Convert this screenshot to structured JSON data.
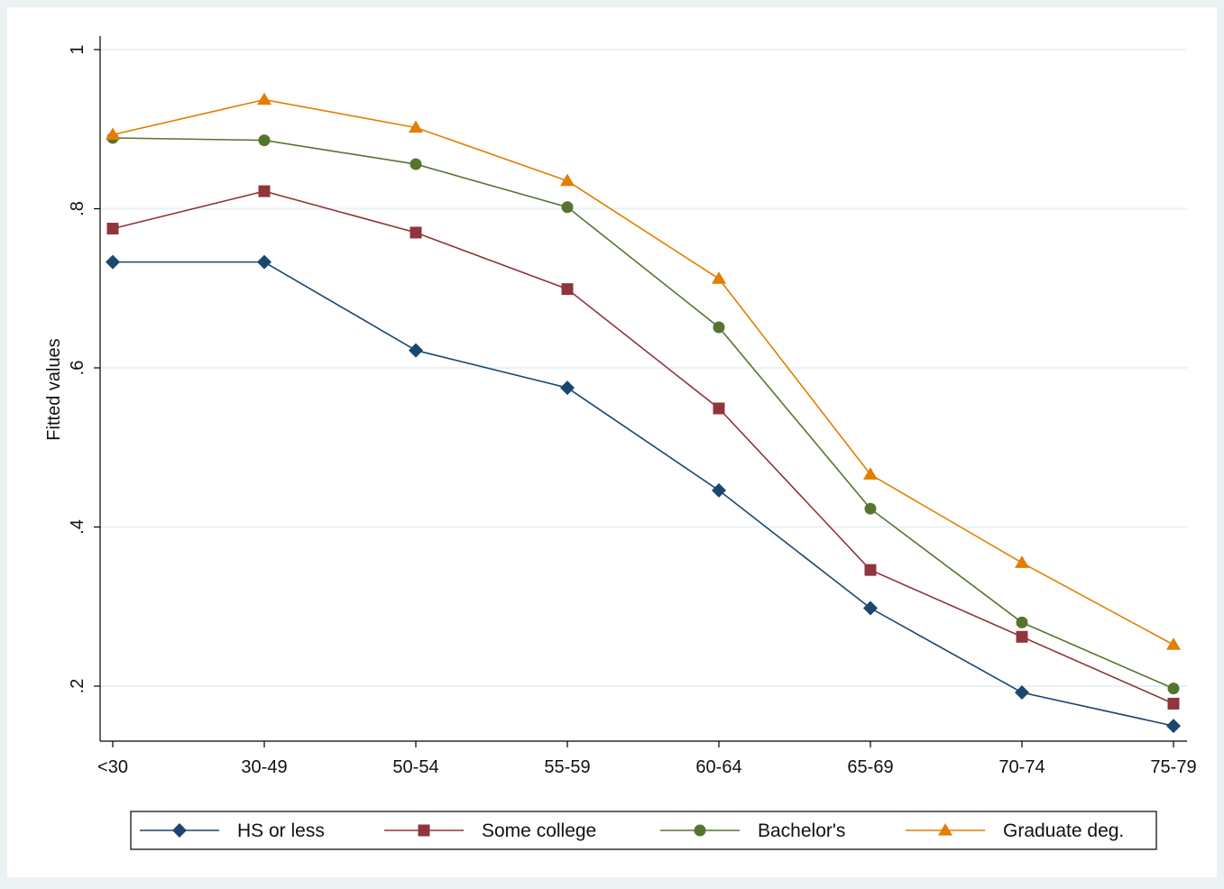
{
  "chart_data": {
    "type": "line",
    "categories": [
      "<30",
      "30-49",
      "50-54",
      "55-59",
      "60-64",
      "65-69",
      "70-74",
      "75-79"
    ],
    "ylabel": "Fitted values",
    "xlabel": "",
    "title": "",
    "ylim": [
      0.14,
      1.02
    ],
    "yticks": [
      0.2,
      0.4,
      0.6,
      0.8,
      1
    ],
    "ytick_labels": [
      ".2",
      ".4",
      ".6",
      ".8",
      "1"
    ],
    "grid": true,
    "legend_position": "bottom",
    "series": [
      {
        "name": "HS or less",
        "color": "#1a476f",
        "marker": "diamond",
        "values": [
          0.733,
          0.733,
          0.622,
          0.575,
          0.446,
          0.298,
          0.192,
          0.15
        ]
      },
      {
        "name": "Some college",
        "color": "#90353b",
        "marker": "square",
        "values": [
          0.775,
          0.822,
          0.77,
          0.699,
          0.549,
          0.346,
          0.262,
          0.178
        ]
      },
      {
        "name": "Bachelor's",
        "color": "#55752f",
        "marker": "circle",
        "values": [
          0.889,
          0.886,
          0.856,
          0.802,
          0.651,
          0.423,
          0.28,
          0.197
        ]
      },
      {
        "name": "Graduate deg.",
        "color": "#e37e00",
        "marker": "triangle",
        "values": [
          0.893,
          0.937,
          0.902,
          0.835,
          0.712,
          0.466,
          0.355,
          0.252
        ]
      }
    ]
  }
}
